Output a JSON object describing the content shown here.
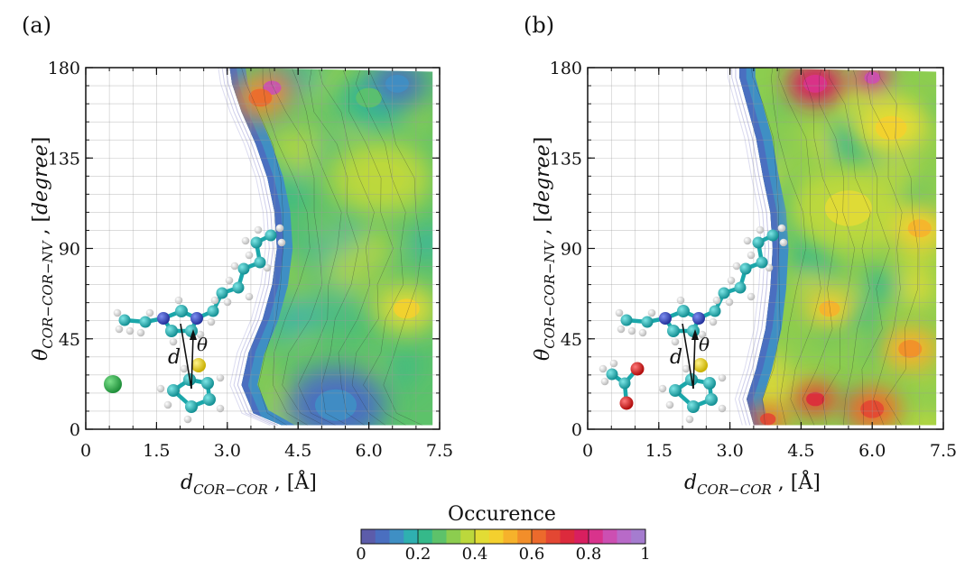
{
  "chart_data": [
    {
      "type": "heatmap",
      "panel_label": "(a)",
      "xlabel": "d_COR-COR , [Å]",
      "ylabel": "θ_COR-COR-NV , [degree]",
      "xlim": [
        0,
        7.5
      ],
      "ylim": [
        0,
        180
      ],
      "x_ticks": [
        0,
        1.5,
        3.0,
        4.5,
        6.0,
        7.5
      ],
      "x_tick_labels": [
        "0",
        "1.5",
        "3.0",
        "4.5",
        "6.0",
        "7.5"
      ],
      "y_ticks": [
        0,
        45,
        90,
        135,
        180
      ],
      "y_tick_labels": [
        "0",
        "45",
        "90",
        "135",
        "180"
      ],
      "grid": true,
      "inset": "molecule with a distance d and angle θ above a ring; green sphere",
      "inset_labels": [
        "d",
        "θ"
      ],
      "contact_boundary": [
        [
          4.15,
          0
        ],
        [
          3.55,
          8
        ],
        [
          3.3,
          22
        ],
        [
          3.45,
          38
        ],
        [
          3.75,
          55
        ],
        [
          3.95,
          72
        ],
        [
          4.05,
          90
        ],
        [
          4.0,
          108
        ],
        [
          3.85,
          125
        ],
        [
          3.6,
          142
        ],
        [
          3.3,
          158
        ],
        [
          3.1,
          172
        ],
        [
          3.05,
          180
        ]
      ],
      "hotspots": [
        {
          "x": 3.95,
          "y": 170,
          "value": 0.8,
          "r": 0.35
        },
        {
          "x": 3.7,
          "y": 165,
          "value": 0.55,
          "r": 0.45
        },
        {
          "x": 6.8,
          "y": 60,
          "value": 0.42,
          "r": 0.5
        },
        {
          "x": 6.3,
          "y": 125,
          "value": 0.35,
          "r": 0.8
        },
        {
          "x": 6.0,
          "y": 165,
          "value": 0.2,
          "r": 0.5
        },
        {
          "x": 6.6,
          "y": 172,
          "value": 0.05,
          "r": 0.45
        },
        {
          "x": 5.3,
          "y": 12,
          "value": 0.05,
          "r": 0.8
        }
      ],
      "background_value": 0.28
    },
    {
      "type": "heatmap",
      "panel_label": "(b)",
      "xlabel": "d_COR-COR , [Å]",
      "ylabel": "θ_COR-COR-NV , [degree]",
      "xlim": [
        0,
        7.5
      ],
      "ylim": [
        0,
        180
      ],
      "x_ticks": [
        0,
        1.5,
        3.0,
        4.5,
        6.0,
        7.5
      ],
      "x_tick_labels": [
        "0",
        "1.5",
        "3.0",
        "4.5",
        "6.0",
        "7.5"
      ],
      "y_ticks": [
        0,
        45,
        90,
        135,
        180
      ],
      "y_tick_labels": [
        "0",
        "45",
        "90",
        "135",
        "180"
      ],
      "grid": true,
      "inset": "molecule with a distance d and angle θ above a ring; carboxylate group",
      "inset_labels": [
        "d",
        "θ"
      ],
      "contact_boundary": [
        [
          3.5,
          0
        ],
        [
          3.35,
          15
        ],
        [
          3.55,
          30
        ],
        [
          3.75,
          50
        ],
        [
          3.85,
          70
        ],
        [
          3.9,
          90
        ],
        [
          3.85,
          108
        ],
        [
          3.7,
          125
        ],
        [
          3.55,
          145
        ],
        [
          3.35,
          162
        ],
        [
          3.2,
          175
        ],
        [
          3.2,
          180
        ]
      ],
      "hotspots": [
        {
          "x": 4.8,
          "y": 172,
          "value": 0.75,
          "r": 0.45
        },
        {
          "x": 6.0,
          "y": 175,
          "value": 0.8,
          "r": 0.3
        },
        {
          "x": 4.8,
          "y": 15,
          "value": 0.65,
          "r": 0.35
        },
        {
          "x": 6.0,
          "y": 10,
          "value": 0.6,
          "r": 0.45
        },
        {
          "x": 3.8,
          "y": 5,
          "value": 0.6,
          "r": 0.3
        },
        {
          "x": 5.1,
          "y": 60,
          "value": 0.48,
          "r": 0.4
        },
        {
          "x": 6.8,
          "y": 40,
          "value": 0.5,
          "r": 0.45
        },
        {
          "x": 7.0,
          "y": 100,
          "value": 0.45,
          "r": 0.45
        },
        {
          "x": 5.5,
          "y": 110,
          "value": 0.38,
          "r": 0.9
        },
        {
          "x": 6.4,
          "y": 150,
          "value": 0.4,
          "r": 0.6
        }
      ],
      "background_value": 0.32
    }
  ],
  "colorbar": {
    "title": "Occurence",
    "min": 0,
    "max": 1,
    "ticks": [
      0,
      0.2,
      0.4,
      0.6,
      0.8,
      1
    ],
    "tick_labels": [
      "0",
      "0.2",
      "0.4",
      "0.6",
      "0.8",
      "1"
    ],
    "colors": [
      "#5c5caa",
      "#4a6fc0",
      "#3f8fc4",
      "#2fb0b0",
      "#35b98a",
      "#5dc26a",
      "#8ccd4f",
      "#bcd83c",
      "#e2dc35",
      "#f4d02e",
      "#f6b22b",
      "#f28e2a",
      "#ec6a2c",
      "#e34733",
      "#dc2a3c",
      "#d81f5f",
      "#d9338c",
      "#cc4fb2",
      "#b86ac8",
      "#a57ccf"
    ]
  }
}
